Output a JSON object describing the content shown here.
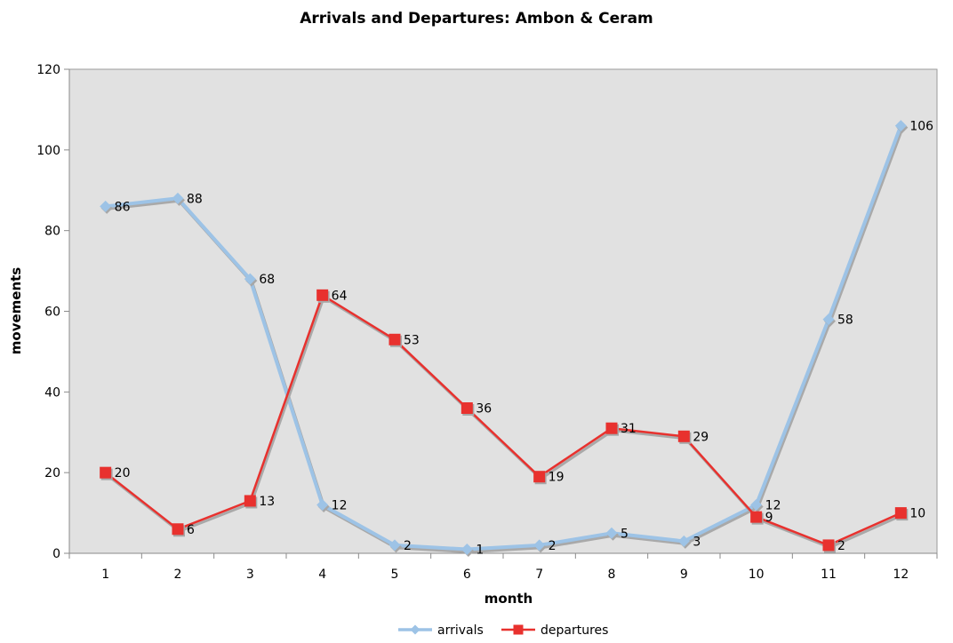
{
  "chart_data": {
    "type": "line",
    "title": "Arrivals and Departures: Ambon & Ceram",
    "xlabel": "month",
    "ylabel": "movements",
    "categories": [
      "1",
      "2",
      "3",
      "4",
      "5",
      "6",
      "7",
      "8",
      "9",
      "10",
      "11",
      "12"
    ],
    "yticks": [
      "0",
      "20",
      "40",
      "60",
      "80",
      "100",
      "120"
    ],
    "ylim": [
      0,
      120
    ],
    "grid": false,
    "legend_position": "bottom",
    "plot_background": "#e1e1e1",
    "series": [
      {
        "name": "arrivals",
        "values": [
          86,
          88,
          68,
          12,
          2,
          1,
          2,
          5,
          3,
          12,
          58,
          106
        ],
        "color": "#9dc3e6",
        "marker": "diamond"
      },
      {
        "name": "departures",
        "values": [
          20,
          6,
          13,
          64,
          53,
          36,
          19,
          31,
          29,
          9,
          2,
          10
        ],
        "color": "#e8312e",
        "marker": "square"
      }
    ]
  }
}
